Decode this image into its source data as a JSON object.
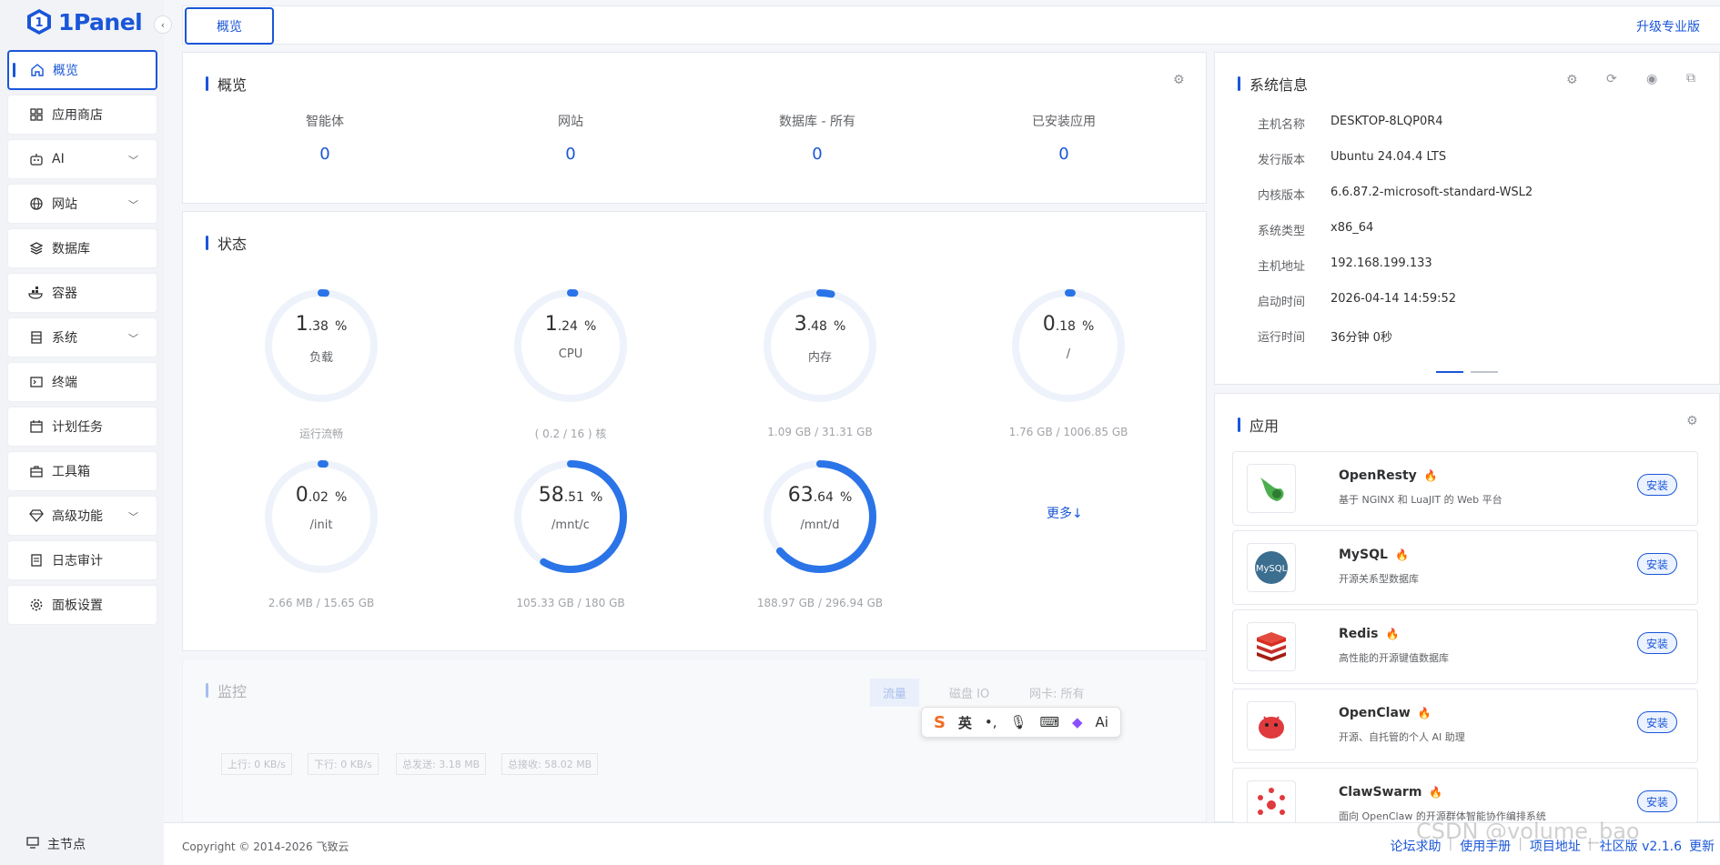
{
  "brand": {
    "name": "1Panel",
    "color": "#1a56d8"
  },
  "sidebar": {
    "items": [
      {
        "label": "概览",
        "icon": "home-icon",
        "active": true,
        "expandable": false
      },
      {
        "label": "应用商店",
        "icon": "grid-icon",
        "expandable": false
      },
      {
        "label": "AI",
        "icon": "robot-icon",
        "expandable": true
      },
      {
        "label": "网站",
        "icon": "globe-icon",
        "expandable": true
      },
      {
        "label": "数据库",
        "icon": "layers-icon",
        "expandable": false
      },
      {
        "label": "容器",
        "icon": "docker-icon",
        "expandable": false
      },
      {
        "label": "系统",
        "icon": "server-icon",
        "expandable": true
      },
      {
        "label": "终端",
        "icon": "terminal-icon",
        "expandable": false
      },
      {
        "label": "计划任务",
        "icon": "calendar-icon",
        "expandable": false
      },
      {
        "label": "工具箱",
        "icon": "toolbox-icon",
        "expandable": false
      },
      {
        "label": "高级功能",
        "icon": "diamond-icon",
        "expandable": true
      },
      {
        "label": "日志审计",
        "icon": "log-icon",
        "expandable": false
      },
      {
        "label": "面板设置",
        "icon": "gear-icon",
        "expandable": false
      }
    ],
    "master_node": "主节点"
  },
  "topbar": {
    "tab": "概览",
    "upgrade": "升级专业版"
  },
  "overview": {
    "title": "概览",
    "stats": [
      {
        "label": "智能体",
        "value": "0"
      },
      {
        "label": "网站",
        "value": "0"
      },
      {
        "label": "数据库 - 所有",
        "value": "0"
      },
      {
        "label": "已安装应用",
        "value": "0"
      }
    ]
  },
  "status": {
    "title": "状态",
    "gauges": [
      {
        "int": "1",
        "dec": ".38",
        "unit": "%",
        "name": "负载",
        "foot": "运行流畅",
        "percent": 1.38
      },
      {
        "int": "1",
        "dec": ".24",
        "unit": "%",
        "name": "CPU",
        "foot": "( 0.2 / 16 ) 核",
        "percent": 1.24
      },
      {
        "int": "3",
        "dec": ".48",
        "unit": "%",
        "name": "内存",
        "foot": "1.09 GB / 31.31 GB",
        "percent": 3.48
      },
      {
        "int": "0",
        "dec": ".18",
        "unit": "%",
        "name": "/",
        "foot": "1.76 GB / 1006.85 GB",
        "percent": 0.18
      },
      {
        "int": "0",
        "dec": ".02",
        "unit": "%",
        "name": "/init",
        "foot": "2.66 MB / 15.65 GB",
        "percent": 0.02
      },
      {
        "int": "58",
        "dec": ".51",
        "unit": "%",
        "name": "/mnt/c",
        "foot": "105.33 GB / 180 GB",
        "percent": 58.51
      },
      {
        "int": "63",
        "dec": ".64",
        "unit": "%",
        "name": "/mnt/d",
        "foot": "188.97 GB / 296.94 GB",
        "percent": 63.64
      }
    ],
    "more": "更多↓"
  },
  "monitor": {
    "title": "监控",
    "tabs": [
      "流量",
      "磁盘 IO",
      "网卡: 所有"
    ],
    "chips": [
      "上行: 0 KB/s",
      "下行: 0 KB/s",
      "总发送: 3.18 MB",
      "总接收: 58.02 MB"
    ]
  },
  "sysinfo": {
    "title": "系统信息",
    "rows": [
      {
        "k": "主机名称",
        "v": "DESKTOP-8LQP0R4"
      },
      {
        "k": "发行版本",
        "v": "Ubuntu 24.04.4 LTS"
      },
      {
        "k": "内核版本",
        "v": "6.6.87.2-microsoft-standard-WSL2"
      },
      {
        "k": "系统类型",
        "v": "x86_64"
      },
      {
        "k": "主机地址",
        "v": "192.168.199.133"
      },
      {
        "k": "启动时间",
        "v": "2026-04-14 14:59:52"
      },
      {
        "k": "运行时间",
        "v": "36分钟 0秒"
      }
    ]
  },
  "apps": {
    "title": "应用",
    "items": [
      {
        "name": "OpenResty",
        "desc": "基于 NGINX 和 LuaJIT 的 Web 平台",
        "icon": "openresty-icon",
        "btn": "安装"
      },
      {
        "name": "MySQL",
        "desc": "开源关系型数据库",
        "icon": "mysql-icon",
        "btn": "安装"
      },
      {
        "name": "Redis",
        "desc": "高性能的开源键值数据库",
        "icon": "redis-icon",
        "btn": "安装"
      },
      {
        "name": "OpenClaw",
        "desc": "开源、自托管的个人 AI 助理",
        "icon": "openclaw-icon",
        "btn": "安装"
      },
      {
        "name": "ClawSwarm",
        "desc": "面向 OpenClaw 的开源群体智能协作编排系统",
        "icon": "clawswarm-icon",
        "btn": "安装"
      }
    ]
  },
  "ime": {
    "lang": "英",
    "ai": "Ai"
  },
  "footer": {
    "copyright": "Copyright © 2014-2026 飞致云",
    "links": [
      "论坛求助",
      "使用手册",
      "项目地址",
      "社区版 v2.1.6",
      "更新"
    ]
  },
  "watermark": "CSDN @volume_bao"
}
